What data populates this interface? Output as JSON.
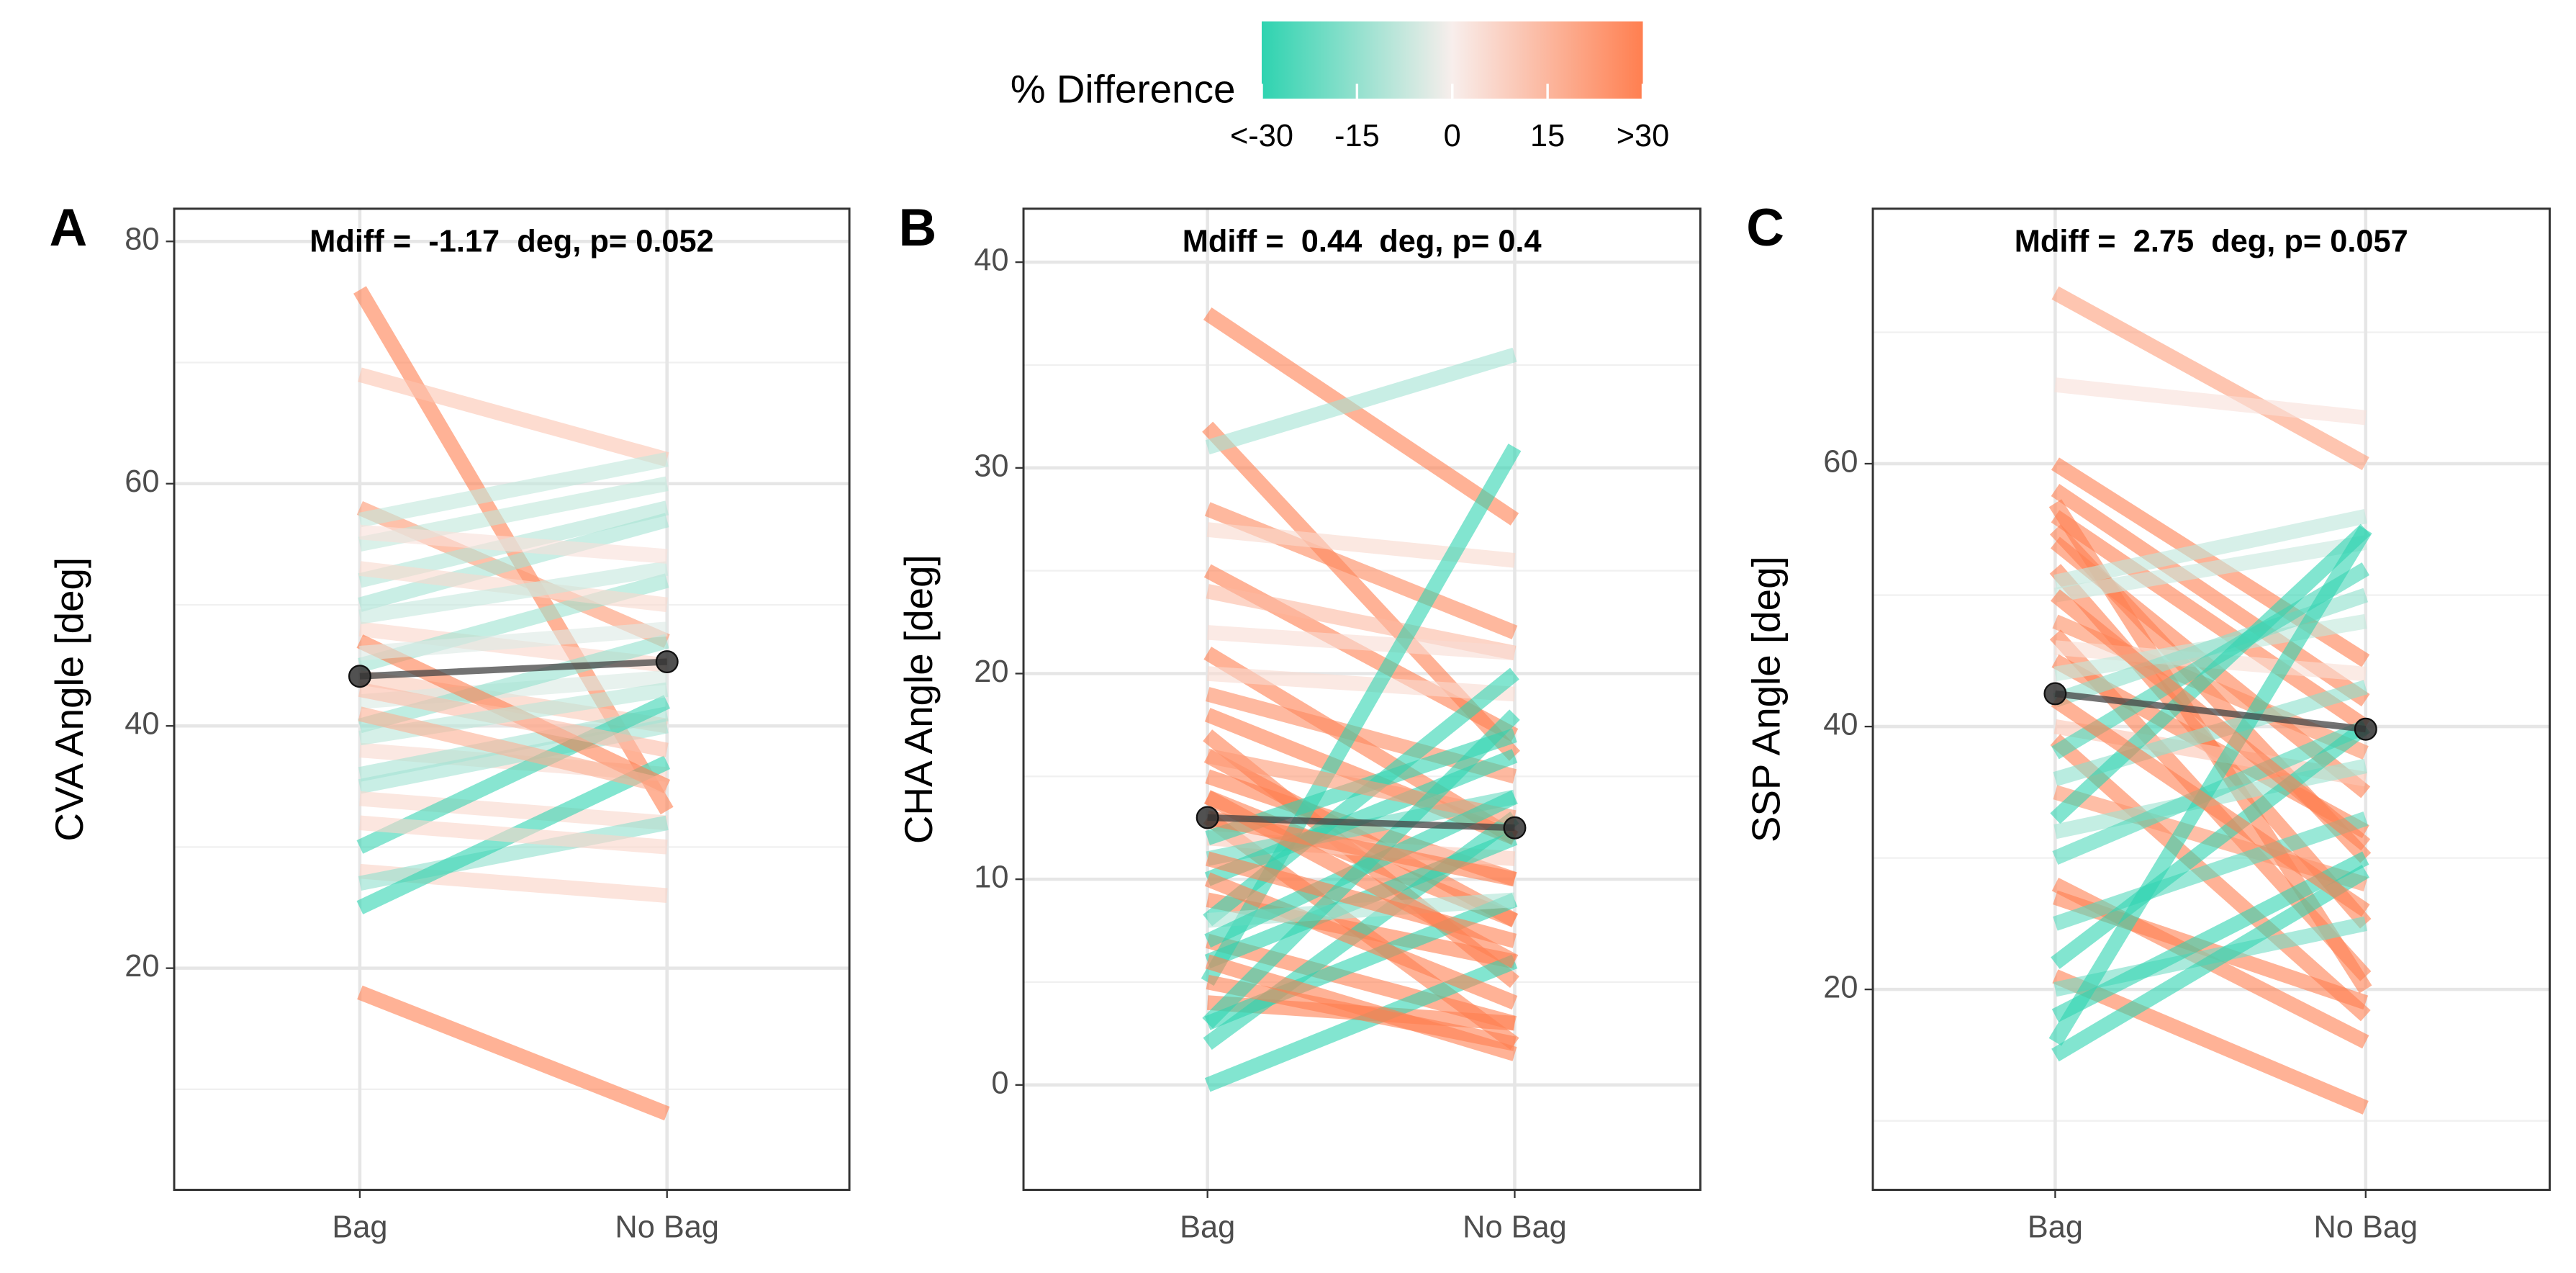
{
  "color_scale": {
    "title": "% Difference",
    "colors": [
      "#2ED3B0",
      "#F8EEEC",
      "#FF7F50"
    ],
    "ticks": [
      {
        "value": -30,
        "label": "<-30"
      },
      -15,
      0,
      15,
      {
        "value": 30,
        "label": ">30"
      }
    ]
  },
  "chart_data": [
    {
      "type": "slope",
      "panel": "A",
      "annotation": "Mdiff =  -1.17  deg, p= 0.052",
      "y_label": "CVA Angle [deg]",
      "categories": [
        "Bag",
        "No Bag"
      ],
      "ylim": [
        1.7,
        82.7
      ],
      "yticks": [
        20,
        40,
        60,
        80
      ],
      "minor_yticks": [
        10,
        30,
        50,
        70
      ],
      "lines": [
        [
          76,
          33
        ],
        [
          69,
          62
        ],
        [
          18,
          8
        ],
        [
          58,
          47
        ],
        [
          57,
          62
        ],
        [
          55,
          60
        ],
        [
          52,
          58
        ],
        [
          50,
          57
        ],
        [
          48,
          45
        ],
        [
          45,
          52
        ],
        [
          44,
          40
        ],
        [
          42,
          44
        ],
        [
          40,
          47
        ],
        [
          38,
          36
        ],
        [
          36,
          41
        ],
        [
          35,
          40
        ],
        [
          34,
          32
        ],
        [
          30,
          42
        ],
        [
          28,
          26
        ],
        [
          27,
          32
        ],
        [
          25,
          37
        ],
        [
          47,
          35
        ],
        [
          53,
          50
        ],
        [
          49,
          53
        ],
        [
          56,
          54
        ],
        [
          43,
          38
        ],
        [
          39,
          43
        ],
        [
          32,
          30
        ],
        [
          41,
          35
        ],
        [
          46,
          48
        ]
      ],
      "mean": [
        44.1,
        45.3
      ]
    },
    {
      "type": "slope",
      "panel": "B",
      "annotation": "Mdiff =  0.44  deg, p= 0.4",
      "y_label": "CHA Angle [deg]",
      "categories": [
        "Bag",
        "No Bag"
      ],
      "ylim": [
        -5.1,
        42.6
      ],
      "yticks": [
        0,
        10,
        20,
        30,
        40
      ],
      "minor_yticks": [
        5,
        15,
        25,
        35
      ],
      "lines": [
        [
          37.5,
          27.5
        ],
        [
          32,
          16
        ],
        [
          31,
          35.5
        ],
        [
          28,
          22
        ],
        [
          27,
          25.5
        ],
        [
          25,
          17
        ],
        [
          24,
          21
        ],
        [
          22,
          21
        ],
        [
          21,
          12
        ],
        [
          20,
          19
        ],
        [
          19,
          15
        ],
        [
          18,
          12
        ],
        [
          17,
          5
        ],
        [
          16,
          8
        ],
        [
          15,
          10
        ],
        [
          14,
          8
        ],
        [
          13,
          2
        ],
        [
          12,
          11
        ],
        [
          11,
          14
        ],
        [
          10,
          16
        ],
        [
          9,
          6
        ],
        [
          8,
          20
        ],
        [
          7,
          3
        ],
        [
          6,
          12
        ],
        [
          5,
          31
        ],
        [
          4,
          3
        ],
        [
          3,
          9
        ],
        [
          2,
          13
        ],
        [
          0,
          6
        ],
        [
          5,
          2
        ],
        [
          6,
          1.5
        ],
        [
          12,
          17
        ],
        [
          16,
          13
        ],
        [
          10,
          4
        ],
        [
          8,
          9
        ],
        [
          7,
          14
        ],
        [
          14,
          6
        ],
        [
          11,
          7
        ],
        [
          3,
          18
        ],
        [
          13,
          10
        ]
      ],
      "mean": [
        13,
        12.5
      ]
    },
    {
      "type": "slope",
      "panel": "C",
      "annotation": "Mdiff =  2.75  deg, p= 0.057",
      "y_label": "SSP Angle [deg]",
      "categories": [
        "Bag",
        "No Bag"
      ],
      "ylim": [
        4.75,
        79.4
      ],
      "yticks": [
        20,
        40,
        60
      ],
      "minor_yticks": [
        10,
        30,
        50,
        70
      ],
      "lines": [
        [
          73,
          60
        ],
        [
          66,
          63.5
        ],
        [
          60,
          45
        ],
        [
          58,
          42
        ],
        [
          57,
          20
        ],
        [
          56,
          40
        ],
        [
          55,
          30
        ],
        [
          54,
          35
        ],
        [
          52,
          25
        ],
        [
          51,
          56
        ],
        [
          50,
          54
        ],
        [
          48,
          38
        ],
        [
          47,
          21
        ],
        [
          46,
          44
        ],
        [
          45,
          32
        ],
        [
          44,
          48
        ],
        [
          42,
          50
        ],
        [
          40,
          36
        ],
        [
          39,
          18
        ],
        [
          38,
          52
        ],
        [
          36,
          43
        ],
        [
          35,
          28
        ],
        [
          33,
          55
        ],
        [
          32,
          37
        ],
        [
          30,
          40
        ],
        [
          28,
          16
        ],
        [
          27,
          19
        ],
        [
          25,
          33
        ],
        [
          22,
          40
        ],
        [
          21,
          11
        ],
        [
          20,
          25
        ],
        [
          18,
          30
        ],
        [
          16,
          55
        ],
        [
          15,
          29
        ],
        [
          50,
          31
        ],
        [
          42,
          26
        ]
      ],
      "mean": [
        42.5,
        39.8
      ]
    }
  ]
}
